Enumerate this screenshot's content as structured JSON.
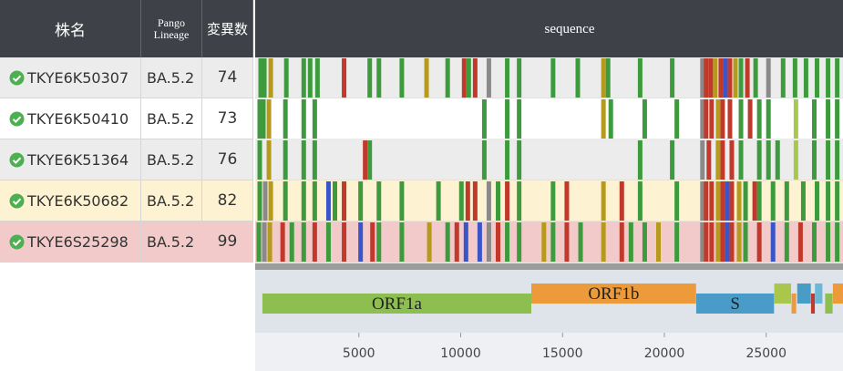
{
  "header": {
    "name": "株名",
    "lineage": "Pango Lineage",
    "count": "変異数",
    "sequence": "sequence"
  },
  "rows": [
    {
      "name": "TKYE6K50307",
      "lineage": "BA.5.2",
      "count": "74",
      "background": "#ececec",
      "mutations": [
        [
          180,
          "#3d9b3d"
        ],
        [
          360,
          "#3d9b3d"
        ],
        [
          675,
          "#b59a1e"
        ],
        [
          1440,
          "#3d9b3d"
        ],
        [
          2295,
          "#3d9b3d"
        ],
        [
          2610,
          "#3d9b3d"
        ],
        [
          2970,
          "#3d9b3d"
        ],
        [
          4275,
          "#c0392b"
        ],
        [
          5535,
          "#3d9b3d"
        ],
        [
          5985,
          "#3d9b3d"
        ],
        [
          7110,
          "#3d9b3d"
        ],
        [
          8325,
          "#b59a1e"
        ],
        [
          9360,
          "#3d9b3d"
        ],
        [
          10170,
          "#c0392b"
        ],
        [
          10395,
          "#3d9b3d"
        ],
        [
          10710,
          "#c0392b"
        ],
        [
          11385,
          "#8a8a8a"
        ],
        [
          12285,
          "#3d9b3d"
        ],
        [
          12870,
          "#3d9b3d"
        ],
        [
          14535,
          "#3d9b3d"
        ],
        [
          15750,
          "#3d9b3d"
        ],
        [
          17010,
          "#b59a1e"
        ],
        [
          17235,
          "#3d9b3d"
        ],
        [
          18810,
          "#3d9b3d"
        ],
        [
          20385,
          "#3d9b3d"
        ],
        [
          21870,
          "#8a8a8a"
        ],
        [
          22050,
          "#c0392b"
        ],
        [
          22275,
          "#c0392b"
        ],
        [
          22500,
          "#b59a1e"
        ],
        [
          22770,
          "#c0392b"
        ],
        [
          22995,
          "#3a55c8"
        ],
        [
          23220,
          "#c0392b"
        ],
        [
          23490,
          "#b59a1e"
        ],
        [
          23760,
          "#3d9b3d"
        ],
        [
          24075,
          "#c0392b"
        ],
        [
          24480,
          "#3d9b3d"
        ],
        [
          25110,
          "#8a8a8a"
        ],
        [
          25830,
          "#3d9b3d"
        ],
        [
          26415,
          "#3d9b3d"
        ],
        [
          26955,
          "#3d9b3d"
        ],
        [
          27495,
          "#3d9b3d"
        ],
        [
          28035,
          "#3d9b3d"
        ],
        [
          28485,
          "#3d9b3d"
        ]
      ]
    },
    {
      "name": "TKYE6K50410",
      "lineage": "BA.5.2",
      "count": "73",
      "background": "#ffffff",
      "mutations": [
        [
          135,
          "#3d9b3d"
        ],
        [
          315,
          "#3d9b3d"
        ],
        [
          585,
          "#b59a1e"
        ],
        [
          1395,
          "#3d9b3d"
        ],
        [
          2295,
          "#3d9b3d"
        ],
        [
          2835,
          "#3d9b3d"
        ],
        [
          11160,
          "#3d9b3d"
        ],
        [
          12285,
          "#3d9b3d"
        ],
        [
          12870,
          "#3d9b3d"
        ],
        [
          17010,
          "#b59a1e"
        ],
        [
          17370,
          "#3d9b3d"
        ],
        [
          19035,
          "#3d9b3d"
        ],
        [
          20610,
          "#3d9b3d"
        ],
        [
          21870,
          "#8a8a8a"
        ],
        [
          22050,
          "#c0392b"
        ],
        [
          22320,
          "#c0392b"
        ],
        [
          22635,
          "#b59a1e"
        ],
        [
          22860,
          "#c0392b"
        ],
        [
          23220,
          "#c0392b"
        ],
        [
          23760,
          "#3d9b3d"
        ],
        [
          24210,
          "#c0392b"
        ],
        [
          24660,
          "#3d9b3d"
        ],
        [
          25110,
          "#3d9b3d"
        ],
        [
          26460,
          "#a9c84b"
        ],
        [
          27360,
          "#3d9b3d"
        ],
        [
          28035,
          "#3d9b3d"
        ],
        [
          28485,
          "#3d9b3d"
        ]
      ]
    },
    {
      "name": "TKYE6K51364",
      "lineage": "BA.5.2",
      "count": "76",
      "background": "#ececec",
      "mutations": [
        [
          135,
          "#3d9b3d"
        ],
        [
          585,
          "#b59a1e"
        ],
        [
          1395,
          "#3d9b3d"
        ],
        [
          2295,
          "#3d9b3d"
        ],
        [
          2835,
          "#3d9b3d"
        ],
        [
          5310,
          "#c0392b"
        ],
        [
          5535,
          "#3d9b3d"
        ],
        [
          11160,
          "#3d9b3d"
        ],
        [
          12285,
          "#3d9b3d"
        ],
        [
          12870,
          "#3d9b3d"
        ],
        [
          18810,
          "#3d9b3d"
        ],
        [
          20385,
          "#3d9b3d"
        ],
        [
          21870,
          "#8a8a8a"
        ],
        [
          22185,
          "#c0392b"
        ],
        [
          22635,
          "#b59a1e"
        ],
        [
          22860,
          "#c0392b"
        ],
        [
          23310,
          "#c0392b"
        ],
        [
          23760,
          "#3d9b3d"
        ],
        [
          24660,
          "#3d9b3d"
        ],
        [
          25110,
          "#3d9b3d"
        ],
        [
          25560,
          "#3d9b3d"
        ],
        [
          26460,
          "#a9c84b"
        ],
        [
          27360,
          "#3d9b3d"
        ],
        [
          28035,
          "#3d9b3d"
        ],
        [
          28485,
          "#3d9b3d"
        ]
      ]
    },
    {
      "name": "TKYE6K50682",
      "lineage": "BA.5.2",
      "count": "82",
      "background": "#fdf3d2",
      "mutations": [
        [
          135,
          "#3d9b3d"
        ],
        [
          405,
          "#8a8a8a"
        ],
        [
          675,
          "#b59a1e"
        ],
        [
          1395,
          "#3d9b3d"
        ],
        [
          2295,
          "#3d9b3d"
        ],
        [
          2835,
          "#3d9b3d"
        ],
        [
          3510,
          "#3a55c8"
        ],
        [
          3825,
          "#3d9b3d"
        ],
        [
          4275,
          "#c0392b"
        ],
        [
          5085,
          "#3d9b3d"
        ],
        [
          5985,
          "#3d9b3d"
        ],
        [
          7110,
          "#3d9b3d"
        ],
        [
          8910,
          "#3d9b3d"
        ],
        [
          10035,
          "#3d9b3d"
        ],
        [
          10350,
          "#c0392b"
        ],
        [
          10710,
          "#c0392b"
        ],
        [
          11385,
          "#8a8a8a"
        ],
        [
          11835,
          "#3d9b3d"
        ],
        [
          12285,
          "#c0392b"
        ],
        [
          12870,
          "#3d9b3d"
        ],
        [
          14535,
          "#3d9b3d"
        ],
        [
          15210,
          "#c0392b"
        ],
        [
          17010,
          "#b59a1e"
        ],
        [
          17910,
          "#c0392b"
        ],
        [
          18810,
          "#3d9b3d"
        ],
        [
          20610,
          "#3d9b3d"
        ],
        [
          21870,
          "#8a8a8a"
        ],
        [
          22050,
          "#c0392b"
        ],
        [
          22320,
          "#c0392b"
        ],
        [
          22635,
          "#b59a1e"
        ],
        [
          22860,
          "#c0392b"
        ],
        [
          23085,
          "#3a55c8"
        ],
        [
          23310,
          "#c0392b"
        ],
        [
          23670,
          "#b59a1e"
        ],
        [
          23985,
          "#3d9b3d"
        ],
        [
          24435,
          "#c0392b"
        ],
        [
          24660,
          "#3d9b3d"
        ],
        [
          25335,
          "#3d9b3d"
        ],
        [
          26010,
          "#3d9b3d"
        ],
        [
          26820,
          "#3d9b3d"
        ],
        [
          27495,
          "#3d9b3d"
        ],
        [
          28035,
          "#3d9b3d"
        ],
        [
          28485,
          "#3d9b3d"
        ]
      ]
    },
    {
      "name": "TKYE6S25298",
      "lineage": "BA.5.2",
      "count": "99",
      "background": "#f2caca",
      "mutations": [
        [
          90,
          "#3d9b3d"
        ],
        [
          360,
          "#8a8a8a"
        ],
        [
          630,
          "#b59a1e"
        ],
        [
          1260,
          "#c0392b"
        ],
        [
          1710,
          "#3d9b3d"
        ],
        [
          2295,
          "#3d9b3d"
        ],
        [
          2835,
          "#c0392b"
        ],
        [
          3510,
          "#3d9b3d"
        ],
        [
          4275,
          "#c0392b"
        ],
        [
          5085,
          "#3a55c8"
        ],
        [
          5670,
          "#c0392b"
        ],
        [
          5985,
          "#3d9b3d"
        ],
        [
          7110,
          "#3d9b3d"
        ],
        [
          8460,
          "#b59a1e"
        ],
        [
          9360,
          "#3d9b3d"
        ],
        [
          9810,
          "#c0392b"
        ],
        [
          10260,
          "#3a55c8"
        ],
        [
          10935,
          "#3a55c8"
        ],
        [
          11385,
          "#8a8a8a"
        ],
        [
          11835,
          "#c0392b"
        ],
        [
          12285,
          "#3d9b3d"
        ],
        [
          12870,
          "#3d9b3d"
        ],
        [
          14085,
          "#b59a1e"
        ],
        [
          14535,
          "#3d9b3d"
        ],
        [
          15210,
          "#c0392b"
        ],
        [
          15885,
          "#3d9b3d"
        ],
        [
          17010,
          "#b59a1e"
        ],
        [
          17910,
          "#c0392b"
        ],
        [
          18360,
          "#3d9b3d"
        ],
        [
          19035,
          "#3d9b3d"
        ],
        [
          19710,
          "#b59a1e"
        ],
        [
          20610,
          "#3d9b3d"
        ],
        [
          21870,
          "#8a8a8a"
        ],
        [
          22050,
          "#c0392b"
        ],
        [
          22320,
          "#c0392b"
        ],
        [
          22635,
          "#b59a1e"
        ],
        [
          22860,
          "#c0392b"
        ],
        [
          23085,
          "#3a55c8"
        ],
        [
          23310,
          "#c0392b"
        ],
        [
          23670,
          "#b59a1e"
        ],
        [
          23985,
          "#3d9b3d"
        ],
        [
          24660,
          "#c0392b"
        ],
        [
          25335,
          "#3a55c8"
        ],
        [
          26010,
          "#3d9b3d"
        ],
        [
          26685,
          "#c0392b"
        ],
        [
          27360,
          "#3d9b3d"
        ],
        [
          28035,
          "#3d9b3d"
        ],
        [
          28485,
          "#3d9b3d"
        ]
      ]
    }
  ],
  "genome": {
    "xlim": [
      0,
      28770
    ],
    "xticks": [
      5000,
      10000,
      15000,
      20000,
      25000
    ],
    "genes": [
      {
        "name": "ORF1a",
        "start": 266,
        "end": 13468,
        "color": "#8cbf4f"
      },
      {
        "name": "ORF1b",
        "start": 13468,
        "end": 21555,
        "color": "#ec9a3a"
      },
      {
        "name": "S",
        "start": 21563,
        "end": 25384,
        "color": "#4a9cc8"
      },
      {
        "start": 25393,
        "end": 26220,
        "color": "#a9c84b"
      },
      {
        "start": 26245,
        "end": 26472,
        "color": "#ec9a3a"
      },
      {
        "start": 26523,
        "end": 27191,
        "color": "#4a9cc8"
      },
      {
        "start": 27202,
        "end": 27387,
        "color": "#c0392b"
      },
      {
        "start": 27394,
        "end": 27759,
        "color": "#6ab7d8"
      },
      {
        "start": 27894,
        "end": 28259,
        "color": "#8cbf4f"
      },
      {
        "start": 28274,
        "end": 29533,
        "color": "#ec9a3a"
      }
    ]
  }
}
